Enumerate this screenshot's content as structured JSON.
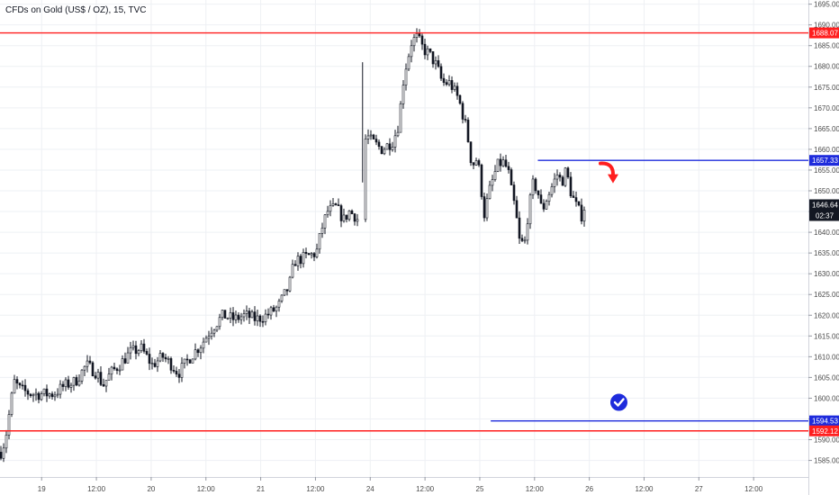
{
  "header": {
    "title": "CFDs on Gold (US$ / OZ), 15, TVC"
  },
  "chart_data": {
    "type": "candlestick",
    "title": "CFDs on Gold (US$ / OZ), 15, TVC",
    "interval": "15",
    "source": "TVC",
    "ylim": [
      1581,
      1696
    ],
    "y_ticks": [
      1585,
      1590,
      1595,
      1600,
      1605,
      1610,
      1615,
      1620,
      1625,
      1630,
      1635,
      1640,
      1645,
      1650,
      1655,
      1660,
      1665,
      1670,
      1675,
      1680,
      1685,
      1690,
      1695
    ],
    "y_tick_labels": [
      "1585.00",
      "1590.00",
      "1595.00",
      "1600.00",
      "1605.00",
      "1610.00",
      "1615.00",
      "1620.00",
      "1625.00",
      "1630.00",
      "1635.00",
      "1640.00",
      "1645.00",
      "1650.00",
      "1655.00",
      "1660.00",
      "1665.00",
      "1670.00",
      "1675.00",
      "1680.00",
      "1685.00",
      "1690.00",
      "1695.00"
    ],
    "x_ticks": [
      {
        "label": "19",
        "t": 1.0
      },
      {
        "label": "12:00",
        "t": 1.5
      },
      {
        "label": "20",
        "t": 2.0
      },
      {
        "label": "12:00",
        "t": 2.5
      },
      {
        "label": "21",
        "t": 3.0
      },
      {
        "label": "12:00",
        "t": 3.5
      },
      {
        "label": "24",
        "t": 4.0
      },
      {
        "label": "12:00",
        "t": 4.5
      },
      {
        "label": "25",
        "t": 5.0
      },
      {
        "label": "12:00",
        "t": 5.5
      },
      {
        "label": "26",
        "t": 6.0
      },
      {
        "label": "12:00",
        "t": 6.5
      },
      {
        "label": "27",
        "t": 7.0
      },
      {
        "label": "12:00",
        "t": 7.5
      }
    ],
    "xlim": [
      0.62,
      8.0
    ],
    "price_path": [
      [
        0.62,
        1587
      ],
      [
        0.66,
        1590
      ],
      [
        0.7,
        1597
      ],
      [
        0.74,
        1604
      ],
      [
        0.8,
        1602
      ],
      [
        0.9,
        1601
      ],
      [
        1.0,
        1601
      ],
      [
        1.1,
        1601
      ],
      [
        1.2,
        1603
      ],
      [
        1.3,
        1604
      ],
      [
        1.4,
        1608
      ],
      [
        1.5,
        1606
      ],
      [
        1.55,
        1603
      ],
      [
        1.62,
        1606
      ],
      [
        1.7,
        1608
      ],
      [
        1.8,
        1611
      ],
      [
        1.9,
        1612
      ],
      [
        2.0,
        1608
      ],
      [
        2.1,
        1610
      ],
      [
        2.18,
        1608
      ],
      [
        2.24,
        1606
      ],
      [
        2.35,
        1610
      ],
      [
        2.45,
        1613
      ],
      [
        2.55,
        1617
      ],
      [
        2.65,
        1620
      ],
      [
        2.75,
        1619
      ],
      [
        2.85,
        1620
      ],
      [
        2.95,
        1619
      ],
      [
        3.05,
        1620
      ],
      [
        3.15,
        1622
      ],
      [
        3.25,
        1627
      ],
      [
        3.3,
        1633
      ],
      [
        3.4,
        1634
      ],
      [
        3.5,
        1635
      ],
      [
        3.55,
        1641
      ],
      [
        3.6,
        1645
      ],
      [
        3.68,
        1646
      ],
      [
        3.75,
        1643
      ],
      [
        3.8,
        1645
      ],
      [
        3.85,
        1644
      ],
      [
        3.88,
        1643
      ],
      [
        3.93,
        1662
      ],
      [
        3.97,
        1663
      ],
      [
        4.0,
        1662
      ],
      [
        4.05,
        1661
      ],
      [
        4.1,
        1660
      ],
      [
        4.2,
        1662
      ],
      [
        4.25,
        1666
      ],
      [
        4.3,
        1678
      ],
      [
        4.37,
        1686
      ],
      [
        4.42,
        1687
      ],
      [
        4.48,
        1684
      ],
      [
        4.53,
        1683
      ],
      [
        4.6,
        1680
      ],
      [
        4.65,
        1676
      ],
      [
        4.72,
        1676
      ],
      [
        4.8,
        1672
      ],
      [
        4.87,
        1665
      ],
      [
        4.92,
        1656
      ],
      [
        4.97,
        1658
      ],
      [
        5.0,
        1652
      ],
      [
        5.03,
        1644
      ],
      [
        5.08,
        1650
      ],
      [
        5.15,
        1656
      ],
      [
        5.2,
        1657
      ],
      [
        5.25,
        1655
      ],
      [
        5.28,
        1650
      ],
      [
        5.32,
        1645
      ],
      [
        5.35,
        1638
      ],
      [
        5.4,
        1637
      ],
      [
        5.43,
        1644
      ],
      [
        5.48,
        1652
      ],
      [
        5.52,
        1650
      ],
      [
        5.56,
        1645
      ],
      [
        5.6,
        1648
      ],
      [
        5.65,
        1651
      ],
      [
        5.7,
        1654
      ],
      [
        5.74,
        1652
      ],
      [
        5.78,
        1655
      ],
      [
        5.82,
        1650
      ],
      [
        5.86,
        1647
      ],
      [
        5.92,
        1644
      ],
      [
        5.97,
        1648
      ]
    ],
    "last_price": "1646.64",
    "countdown": "02:37",
    "horizontal_lines": [
      {
        "price": 1688.07,
        "label": "1688.07",
        "color": "#ff1e1e",
        "x_start": 0.62
      },
      {
        "price": 1657.33,
        "label": "1657.33",
        "color": "#1e2bdc",
        "x_start": 5.53
      },
      {
        "price": 1594.53,
        "label": "1594.53",
        "color": "#1e2bdc",
        "x_start": 5.1
      },
      {
        "price": 1592.12,
        "label": "1592.12",
        "color": "#ff1e1e",
        "x_start": 0.62
      }
    ],
    "annotations": [
      {
        "type": "curved-arrow-down",
        "color": "#ff1e1e",
        "t": 6.2,
        "price": 1654
      },
      {
        "type": "check-circle",
        "color": "#1e2bdc",
        "t": 6.27,
        "price": 1599
      }
    ],
    "colors": {
      "candle": "#131722",
      "axis_text": "#4a4a4a",
      "grid": "#eef0f4",
      "last_price_badge": "#131722"
    }
  }
}
